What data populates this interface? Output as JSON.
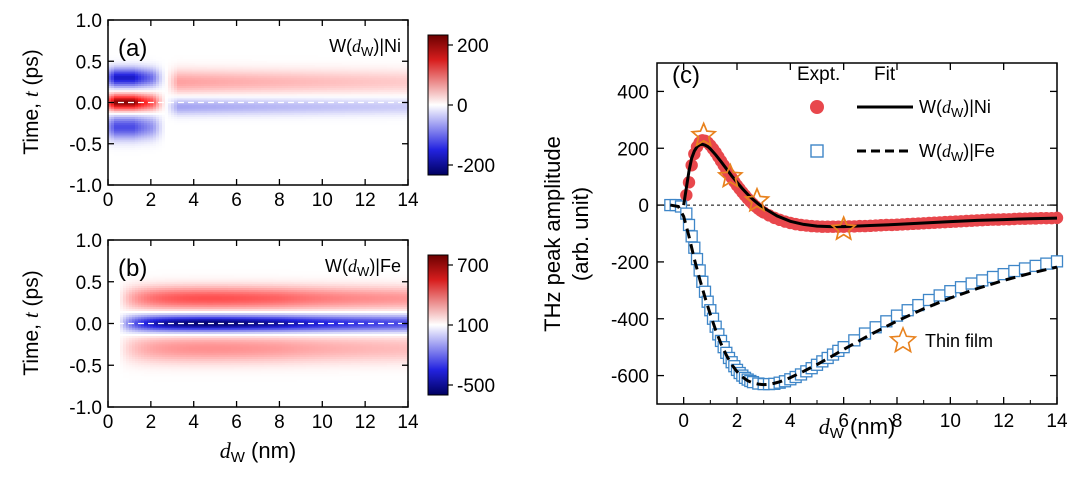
{
  "chart_data": [
    {
      "type": "heatmap",
      "panel_label": "(a)",
      "sample_label": {
        "prefix": "W(",
        "var": "d",
        "sub": "W",
        "suffix": ")|Ni"
      },
      "xlabel": "",
      "ylabel": {
        "prefix": "Time, ",
        "var": "t",
        "suffix": " (ps)"
      },
      "xlim": [
        0,
        14
      ],
      "ylim": [
        -1.0,
        1.0
      ],
      "xticks": [
        "0",
        "2",
        "4",
        "6",
        "8",
        "10",
        "12",
        "14"
      ],
      "yticks": [
        "-1.0",
        "-0.5",
        "0.0",
        "0.5",
        "1.0"
      ],
      "colorbar": {
        "min": -200,
        "max": 200,
        "ticks": [
          "200",
          "0",
          "-200"
        ]
      },
      "zero_line": {
        "y": 0.0,
        "style": "dashed-white"
      },
      "model": {
        "early_thickness": [
          0,
          2.7
        ],
        "early_lobes": [
          {
            "t": 0.0,
            "amp": 1.0,
            "width": 0.07
          },
          {
            "t": 0.3,
            "amp": -0.8,
            "width": 0.08
          },
          {
            "t": -0.3,
            "amp": -0.6,
            "width": 0.1
          }
        ],
        "late_lobes": [
          {
            "t": 0.25,
            "amp": 0.3,
            "width": 0.1
          },
          {
            "t": -0.05,
            "amp": -0.3,
            "width": 0.07
          }
        ]
      }
    },
    {
      "type": "heatmap",
      "panel_label": "(b)",
      "sample_label": {
        "prefix": "W(",
        "var": "d",
        "sub": "W",
        "suffix": ")|Fe"
      },
      "xlabel": {
        "var": "d",
        "sub": "W",
        "suffix": " (nm)"
      },
      "ylabel": {
        "prefix": "Time, ",
        "var": "t",
        "suffix": " (ps)"
      },
      "xlim": [
        0,
        14
      ],
      "ylim": [
        -1.0,
        1.0
      ],
      "xticks": [
        "0",
        "2",
        "4",
        "6",
        "8",
        "10",
        "12",
        "14"
      ],
      "yticks": [
        "-1.0",
        "-0.5",
        "0.0",
        "0.5",
        "1.0"
      ],
      "colorbar": {
        "min": -500,
        "max": 700,
        "ticks": [
          "700",
          "100",
          "-500"
        ]
      },
      "zero_line": {
        "y": 0.0,
        "style": "dashed-white"
      },
      "model": {
        "lobes": [
          {
            "t": 0.3,
            "amp": 0.55,
            "width": 0.1
          },
          {
            "t": 0.0,
            "amp": -1.0,
            "width": 0.07
          },
          {
            "t": -0.3,
            "amp": 0.35,
            "width": 0.12
          }
        ],
        "envelope_peak_x": 4.5
      }
    },
    {
      "type": "scatter",
      "panel_label": "(c)",
      "xlabel": {
        "var": "d",
        "sub": "W",
        "suffix": " (nm)"
      },
      "ylabel": [
        "THz peak amplitude",
        "(arb. unit)"
      ],
      "xlim": [
        -1,
        14
      ],
      "ylim": [
        -700,
        500
      ],
      "xticks": [
        "0",
        "2",
        "4",
        "6",
        "8",
        "10",
        "12",
        "14"
      ],
      "yticks": [
        "400",
        "200",
        "0",
        "-200",
        "-400",
        "-600"
      ],
      "legend": {
        "headers": [
          "Expt.",
          "Fit"
        ],
        "entries": [
          {
            "prefix": "W(",
            "var": "d",
            "sub": "W",
            "suffix": ")|Ni"
          },
          {
            "prefix": "W(",
            "var": "d",
            "sub": "W",
            "suffix": ")|Fe"
          }
        ],
        "thin_film": "Thin film",
        "position": "top-right"
      },
      "colors": {
        "ni": "#e8474c",
        "fe": "#3e86c8",
        "star": "#e8821e"
      },
      "series": [
        {
          "marker": "filled-circle",
          "x": [
            0.1,
            0.2,
            0.3,
            0.4,
            0.5,
            0.6,
            0.7,
            0.8,
            0.9,
            1.0,
            1.1,
            1.2,
            1.3,
            1.4,
            1.5,
            1.6,
            1.7,
            1.8,
            1.9,
            2.0,
            2.1,
            2.2,
            2.3,
            2.4,
            2.5,
            2.6,
            2.7,
            2.8,
            2.9,
            3.0,
            3.2,
            3.4,
            3.6,
            3.8,
            4.0,
            4.2,
            4.4,
            4.6,
            4.8,
            5.0,
            5.2,
            5.4,
            5.6,
            5.8,
            6.0,
            6.2,
            6.4,
            6.6,
            6.8,
            7.0,
            7.2,
            7.4,
            7.6,
            7.8,
            8.0,
            8.2,
            8.4,
            8.6,
            8.8,
            9.0,
            9.2,
            9.4,
            9.6,
            9.8,
            10.0,
            10.2,
            10.4,
            10.6,
            10.8,
            11.0,
            11.2,
            11.4,
            11.6,
            11.8,
            12.0,
            12.2,
            12.4,
            12.6,
            12.8,
            13.0,
            13.2,
            13.4,
            13.6,
            13.8,
            14.0
          ],
          "y": [
            35,
            80,
            140,
            180,
            205,
            220,
            228,
            226,
            220,
            210,
            198,
            185,
            170,
            155,
            140,
            124,
            110,
            96,
            82,
            69,
            57,
            45,
            34,
            23,
            13,
            4,
            -5,
            -13,
            -20,
            -26,
            -36,
            -45,
            -52,
            -58,
            -63,
            -67,
            -70,
            -72,
            -74,
            -75,
            -76,
            -76,
            -76,
            -76,
            -76,
            -75,
            -75,
            -74,
            -74,
            -73,
            -72,
            -71,
            -70,
            -70,
            -69,
            -68,
            -67,
            -66,
            -65,
            -64,
            -63,
            -62,
            -61,
            -60,
            -59,
            -58,
            -57,
            -56,
            -55,
            -54,
            -53,
            -52,
            -51,
            -51,
            -50,
            -50,
            -49,
            -48,
            -48,
            -47,
            -47,
            -46,
            -46,
            -46,
            -45
          ]
        },
        {
          "marker": "line-solid",
          "x": [
            0.0,
            0.1,
            0.2,
            0.3,
            0.4,
            0.5,
            0.6,
            0.7,
            0.8,
            0.9,
            1.0,
            1.2,
            1.4,
            1.6,
            1.8,
            2.0,
            2.2,
            2.4,
            2.6,
            2.8,
            3.0,
            3.5,
            4.0,
            4.5,
            5.0,
            5.5,
            6.0,
            7.0,
            8.0,
            9.0,
            10.0,
            11.0,
            12.0,
            13.0,
            14.0
          ],
          "y": [
            0,
            60,
            120,
            165,
            190,
            205,
            212,
            214,
            211,
            206,
            198,
            177,
            153,
            128,
            103,
            80,
            58,
            38,
            20,
            4,
            -10,
            -38,
            -57,
            -68,
            -74,
            -76,
            -76,
            -72,
            -68,
            -63,
            -58,
            -54,
            -51,
            -48,
            -46
          ]
        },
        {
          "marker": "open-square",
          "x": [
            -0.5,
            -0.3,
            -0.1,
            0.1,
            0.2,
            0.3,
            0.4,
            0.5,
            0.6,
            0.7,
            0.8,
            0.9,
            1.0,
            1.1,
            1.2,
            1.3,
            1.4,
            1.5,
            1.6,
            1.7,
            1.8,
            1.9,
            2.0,
            2.1,
            2.2,
            2.3,
            2.4,
            2.5,
            2.6,
            2.8,
            3.0,
            3.2,
            3.4,
            3.6,
            3.8,
            4.0,
            4.2,
            4.4,
            4.6,
            4.8,
            5.0,
            5.2,
            5.4,
            5.6,
            5.8,
            6.0,
            6.4,
            6.8,
            7.2,
            7.6,
            8.0,
            8.4,
            8.8,
            9.2,
            9.6,
            10.0,
            10.4,
            10.8,
            11.2,
            11.6,
            12.0,
            12.4,
            12.8,
            13.2,
            13.6,
            14.0
          ],
          "y": [
            0,
            0,
            -5,
            -30,
            -70,
            -110,
            -150,
            -190,
            -230,
            -270,
            -305,
            -340,
            -370,
            -400,
            -428,
            -455,
            -478,
            -500,
            -520,
            -538,
            -553,
            -567,
            -580,
            -591,
            -600,
            -608,
            -614,
            -619,
            -623,
            -628,
            -630,
            -630,
            -629,
            -625,
            -620,
            -613,
            -605,
            -596,
            -585,
            -574,
            -562,
            -550,
            -538,
            -526,
            -513,
            -500,
            -476,
            -452,
            -430,
            -409,
            -389,
            -370,
            -352,
            -334,
            -318,
            -303,
            -289,
            -276,
            -265,
            -253,
            -243,
            -232,
            -223,
            -214,
            -206,
            -198
          ]
        },
        {
          "marker": "line-dashed",
          "x": [
            -0.5,
            -0.2,
            0.0,
            0.2,
            0.4,
            0.6,
            0.8,
            1.0,
            1.2,
            1.4,
            1.6,
            1.8,
            2.0,
            2.2,
            2.4,
            2.6,
            2.8,
            3.0,
            3.2,
            3.4,
            3.6,
            3.8,
            4.0,
            4.5,
            5.0,
            5.5,
            6.0,
            7.0,
            8.0,
            9.0,
            10.0,
            11.0,
            12.0,
            13.0,
            14.0
          ],
          "y": [
            0,
            -5,
            -40,
            -110,
            -190,
            -260,
            -325,
            -385,
            -440,
            -488,
            -528,
            -561,
            -586,
            -605,
            -618,
            -626,
            -630,
            -632,
            -631,
            -627,
            -622,
            -615,
            -607,
            -585,
            -561,
            -535,
            -508,
            -456,
            -408,
            -365,
            -327,
            -294,
            -265,
            -240,
            -218
          ]
        },
        {
          "marker": "open-star",
          "x": [
            0.75,
            1.75,
            2.75,
            6.0
          ],
          "y": [
            245,
            100,
            15,
            -85
          ]
        }
      ]
    }
  ]
}
